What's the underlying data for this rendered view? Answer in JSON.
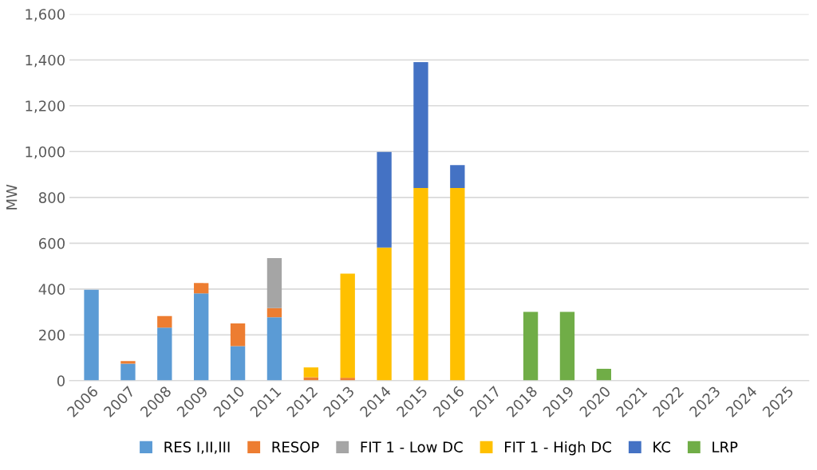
{
  "chart_data": {
    "type": "bar",
    "stacked": true,
    "ylabel": "MW",
    "categories": [
      "2006",
      "2007",
      "2008",
      "2009",
      "2010",
      "2011",
      "2012",
      "2013",
      "2014",
      "2015",
      "2016",
      "2017",
      "2018",
      "2019",
      "2020",
      "2021",
      "2022",
      "2023",
      "2024",
      "2025"
    ],
    "series": [
      {
        "name": "RES I,II,III",
        "color": "#5b9bd5",
        "values": [
          397,
          74,
          232,
          381,
          151,
          277,
          null,
          null,
          null,
          null,
          null,
          null,
          null,
          null,
          null,
          null,
          null,
          null,
          null,
          null
        ]
      },
      {
        "name": "RESOP",
        "color": "#ed7d31",
        "values": [
          null,
          12,
          50,
          45,
          99,
          40,
          15,
          13,
          null,
          null,
          null,
          null,
          null,
          null,
          null,
          null,
          null,
          null,
          null,
          null
        ]
      },
      {
        "name": "FIT 1 - Low DC",
        "color": "#a5a5a5",
        "values": [
          null,
          null,
          null,
          null,
          null,
          218,
          null,
          null,
          null,
          null,
          null,
          null,
          null,
          null,
          null,
          null,
          null,
          null,
          null,
          null
        ]
      },
      {
        "name": "FIT 1 - High DC",
        "color": "#ffc000",
        "values": [
          null,
          null,
          null,
          null,
          null,
          null,
          43,
          454,
          581,
          841,
          841,
          null,
          null,
          null,
          null,
          null,
          null,
          null,
          null,
          null
        ]
      },
      {
        "name": "KC",
        "color": "#4472c4",
        "values": [
          null,
          null,
          null,
          null,
          null,
          null,
          null,
          null,
          417,
          549,
          100,
          null,
          null,
          null,
          null,
          null,
          null,
          null,
          null,
          null
        ]
      },
      {
        "name": "LRP",
        "color": "#70ad47",
        "values": [
          null,
          null,
          null,
          null,
          null,
          null,
          null,
          null,
          null,
          null,
          null,
          null,
          300,
          300,
          52,
          null,
          null,
          null,
          null,
          null
        ]
      }
    ],
    "ylim": [
      0,
      1600
    ],
    "yticks": [
      0,
      {
        "value": 200,
        "label": "200"
      },
      {
        "value": 400,
        "label": "400"
      },
      {
        "value": 600,
        "label": "600"
      },
      {
        "value": 800,
        "label": "800"
      },
      {
        "value": 1000,
        "label": "1,000"
      },
      {
        "value": 1200,
        "label": "1,200"
      },
      {
        "value": 1400,
        "label": "1,400"
      },
      {
        "value": 1600,
        "label": "1,600"
      }
    ],
    "grid": "y",
    "legend": "bottom"
  }
}
